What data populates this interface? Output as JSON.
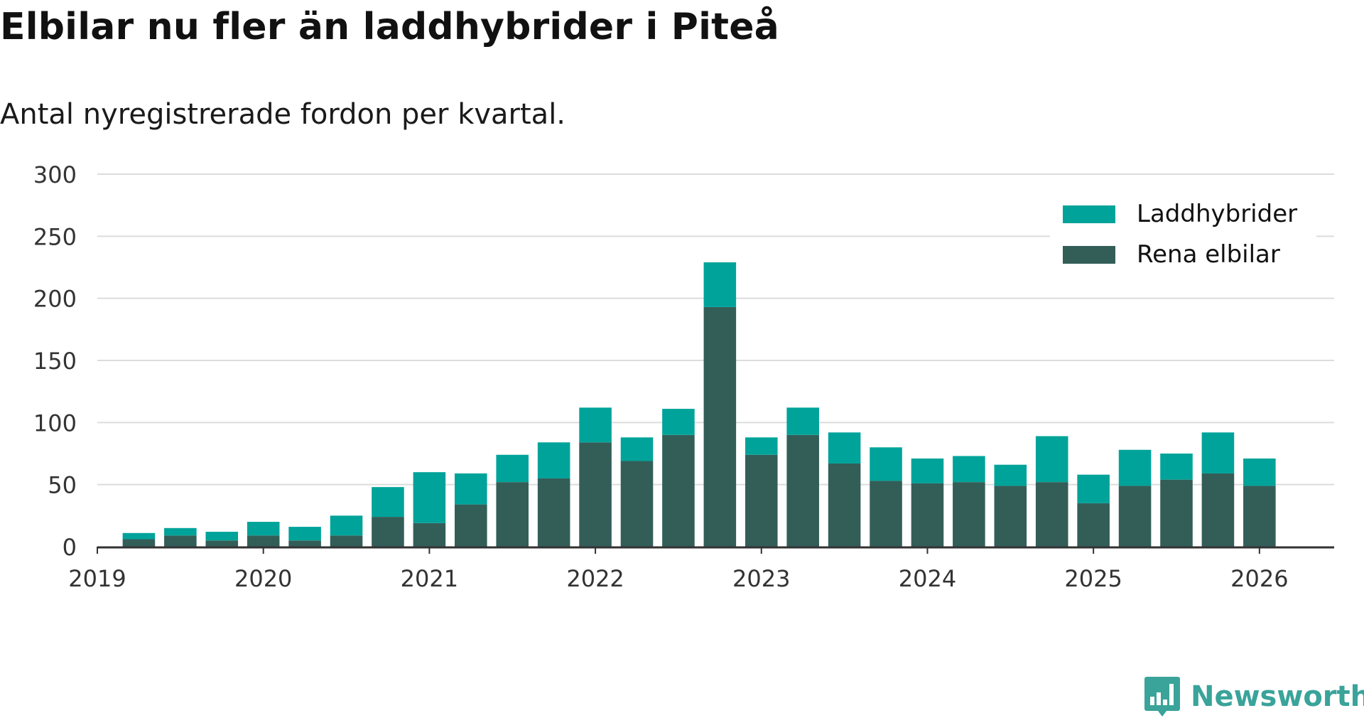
{
  "header": {
    "title": "Elbilar nu fler än laddhybrider i Piteå",
    "subtitle": "Antal nyregistrerade fordon per kvartal."
  },
  "brand": {
    "name": "Newsworthy",
    "logo_icon": "bar-chart-speech-bubble-icon",
    "color": "#3aa39a"
  },
  "chart_data": {
    "type": "bar",
    "stacked": true,
    "title": "Elbilar nu fler än laddhybrider i Piteå",
    "subtitle": "Antal nyregistrerade fordon per kvartal.",
    "xlabel": "",
    "ylabel": "",
    "ylim": [
      0,
      300
    ],
    "yticks": [
      0,
      50,
      100,
      150,
      200,
      250,
      300
    ],
    "xlim": [
      2019,
      2026.45
    ],
    "xticks": [
      2019,
      2020,
      2021,
      2022,
      2023,
      2024,
      2025,
      2026
    ],
    "grid": true,
    "legend_position": "top-right",
    "categories": [
      "2019 Q2",
      "2019 Q3",
      "2019 Q4",
      "2020 Q1",
      "2020 Q2",
      "2020 Q3",
      "2020 Q4",
      "2021 Q1",
      "2021 Q2",
      "2021 Q3",
      "2021 Q4",
      "2022 Q1",
      "2022 Q2",
      "2022 Q3",
      "2022 Q4",
      "2023 Q1",
      "2023 Q2",
      "2023 Q3",
      "2023 Q4",
      "2024 Q1",
      "2024 Q2",
      "2024 Q3",
      "2024 Q4",
      "2025 Q1",
      "2025 Q2",
      "2025 Q3",
      "2025 Q4",
      "2026 Q1"
    ],
    "x": [
      2019.25,
      2019.5,
      2019.75,
      2020.0,
      2020.25,
      2020.5,
      2020.75,
      2021.0,
      2021.25,
      2021.5,
      2021.75,
      2022.0,
      2022.25,
      2022.5,
      2022.75,
      2023.0,
      2023.25,
      2023.5,
      2023.75,
      2024.0,
      2024.25,
      2024.5,
      2024.75,
      2025.0,
      2025.25,
      2025.5,
      2025.75,
      2026.0
    ],
    "series": [
      {
        "name": "Rena elbilar",
        "color": "#335e58",
        "values": [
          6,
          9,
          5,
          9,
          5,
          9,
          24,
          19,
          34,
          52,
          55,
          84,
          69,
          90,
          193,
          74,
          90,
          67,
          53,
          51,
          52,
          49,
          52,
          35,
          49,
          54,
          59,
          49
        ]
      },
      {
        "name": "Laddhybrider",
        "color": "#00a39a",
        "values": [
          5,
          6,
          7,
          11,
          11,
          16,
          24,
          41,
          25,
          22,
          29,
          28,
          19,
          21,
          36,
          14,
          22,
          25,
          27,
          20,
          21,
          17,
          37,
          23,
          29,
          21,
          33,
          22
        ]
      }
    ],
    "legend_order": [
      "Laddhybrider",
      "Rena elbilar"
    ]
  }
}
